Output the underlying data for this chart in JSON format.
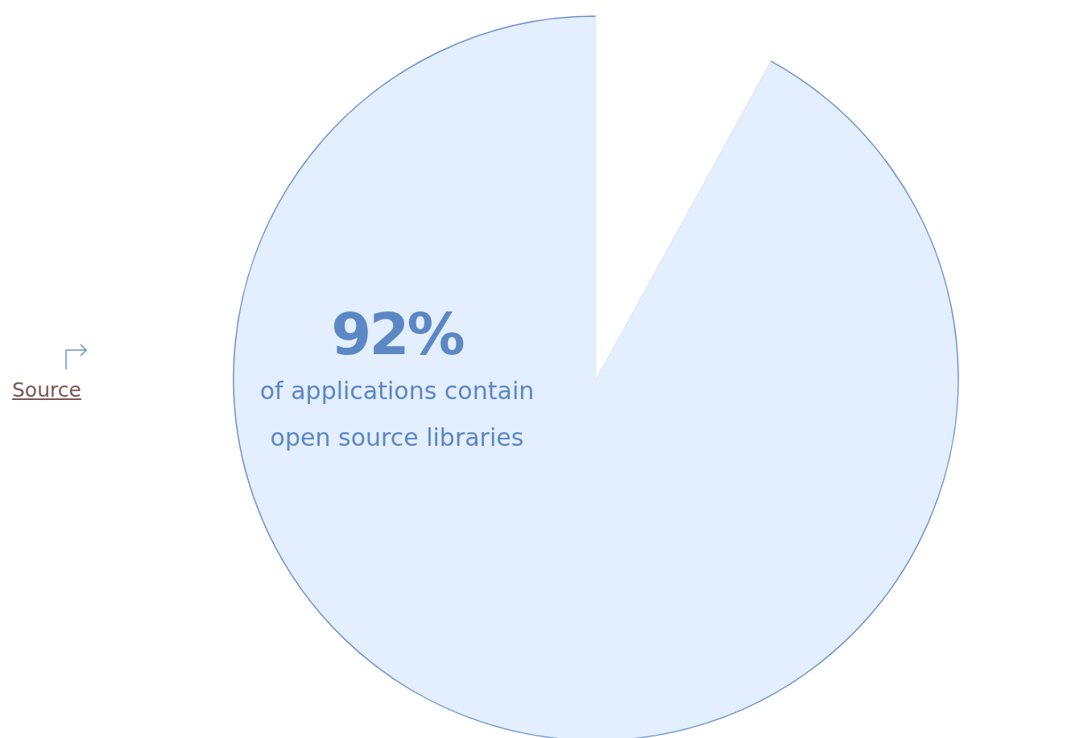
{
  "chart_data": {
    "type": "pie",
    "categories": [
      null,
      null
    ],
    "values": [
      92,
      8
    ],
    "colors": [
      "#e3eefe",
      "#ffffff"
    ],
    "value_labels": [
      "92%",
      null
    ],
    "annotations": [
      "of applications contain open source libraries",
      "Source"
    ]
  }
}
